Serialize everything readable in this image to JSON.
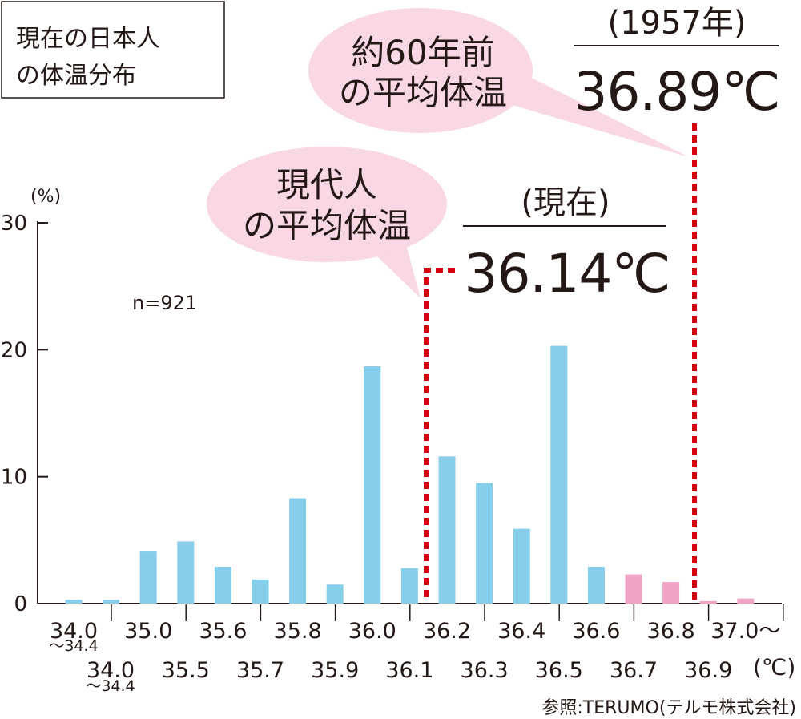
{
  "chart_data": {
    "type": "bar",
    "title": "現在の日本人の体温分布",
    "ylabel": "(%)",
    "xunit": "(℃)",
    "ylim": [
      0,
      30
    ],
    "yticks": [
      0,
      10,
      20,
      30
    ],
    "sample": "n=921",
    "categories": [
      "34.0〜34.4",
      "34.0〜34.4",
      "35.0",
      "35.5",
      "35.6",
      "35.7",
      "35.8",
      "35.9",
      "36.0",
      "36.1",
      "36.2",
      "36.3",
      "36.4",
      "36.5",
      "36.6",
      "36.7",
      "36.8",
      "36.9",
      "37.0〜"
    ],
    "values": [
      0.3,
      0.3,
      4.1,
      4.9,
      2.9,
      1.9,
      8.3,
      1.5,
      18.7,
      2.8,
      11.6,
      9.5,
      5.9,
      20.3,
      2.9,
      2.3,
      1.7,
      0.2,
      0.4
    ],
    "bar_colors": [
      "#87ceeb",
      "#87ceeb",
      "#87ceeb",
      "#87ceeb",
      "#87ceeb",
      "#87ceeb",
      "#87ceeb",
      "#87ceeb",
      "#87ceeb",
      "#87ceeb",
      "#87ceeb",
      "#87ceeb",
      "#87ceeb",
      "#87ceeb",
      "#87ceeb",
      "#f0a3c4",
      "#f0a3c4",
      "#f0a3c4",
      "#f0a3c4"
    ],
    "upper_labels": [
      [
        "34.0",
        "〜34.4"
      ],
      [
        "35.0"
      ],
      [
        "35.6"
      ],
      [
        "35.8"
      ],
      [
        "36.0"
      ],
      [
        "36.2"
      ],
      [
        "36.4"
      ],
      [
        "36.6"
      ],
      [
        "36.8"
      ],
      [
        "37.0〜"
      ]
    ],
    "lower_labels": [
      [
        "34.0",
        "〜34.4"
      ],
      [
        "35.5"
      ],
      [
        "35.7"
      ],
      [
        "35.9"
      ],
      [
        "36.1"
      ],
      [
        "36.3"
      ],
      [
        "36.5"
      ],
      [
        "36.7"
      ],
      [
        "36.9"
      ]
    ],
    "annotations": [
      {
        "id": "modern",
        "bubble_text": [
          "現代人",
          "の平均体温"
        ],
        "header": "(現在)",
        "value": "36.14℃",
        "x": 36.14
      },
      {
        "id": "past",
        "bubble_text": [
          "約60年前",
          "の平均体温"
        ],
        "header": "(1957年)",
        "value": "36.89℃",
        "x": 36.89
      }
    ],
    "grid": false
  },
  "source": "参照:TERUMO(テルモ株式会社)",
  "colors": {
    "bar_blue": "#87ceeb",
    "bar_pink": "#f0a3c4",
    "marker_red": "#d7000f",
    "bubble": "#f9d7e4",
    "text": "#231815"
  }
}
